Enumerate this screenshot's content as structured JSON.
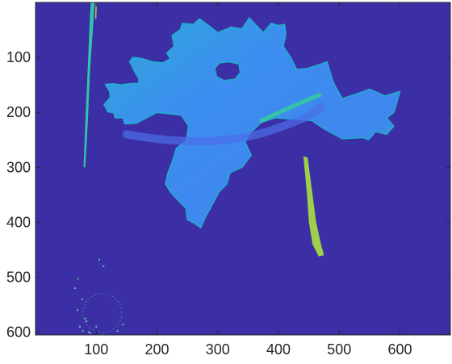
{
  "chart_data": {
    "type": "heatmap",
    "title": "",
    "xlabel": "",
    "ylabel": "",
    "xlim": [
      0,
      683
    ],
    "ylim": [
      0,
      605
    ],
    "y_reversed": true,
    "grid": false,
    "xticks": [
      100,
      200,
      300,
      400,
      500,
      600
    ],
    "xtick_labels": [
      "100",
      "200",
      "300",
      "400",
      "500",
      "600"
    ],
    "yticks": [
      100,
      200,
      300,
      400,
      500,
      600
    ],
    "ytick_labels": [
      "100",
      "200",
      "300",
      "400",
      "500",
      "600"
    ],
    "colormap": "parula",
    "colors": {
      "background": "#3c2fa6",
      "leaf_main": "#3c8ef0",
      "leaf_edge": "#1fb0c8",
      "leaf_inner": "#4a6ee8",
      "vein": "#33c3a8",
      "stem": "#9ed04a",
      "stem_dark": "#4fc3a0",
      "speckle": "#55c6a0"
    },
    "leaf_outline": [
      [
        285,
        42
      ],
      [
        300,
        55
      ],
      [
        322,
        45
      ],
      [
        340,
        48
      ],
      [
        352,
        28
      ],
      [
        362,
        40
      ],
      [
        375,
        55
      ],
      [
        388,
        38
      ],
      [
        400,
        42
      ],
      [
        410,
        40
      ],
      [
        412,
        58
      ],
      [
        408,
        80
      ],
      [
        420,
        100
      ],
      [
        430,
        122
      ],
      [
        448,
        120
      ],
      [
        470,
        112
      ],
      [
        480,
        108
      ],
      [
        490,
        145
      ],
      [
        505,
        175
      ],
      [
        532,
        165
      ],
      [
        550,
        158
      ],
      [
        575,
        170
      ],
      [
        600,
        162
      ],
      [
        590,
        200
      ],
      [
        578,
        210
      ],
      [
        590,
        225
      ],
      [
        578,
        240
      ],
      [
        560,
        235
      ],
      [
        548,
        250
      ],
      [
        540,
        246
      ],
      [
        505,
        248
      ],
      [
        475,
        230
      ],
      [
        455,
        215
      ],
      [
        420,
        212
      ],
      [
        395,
        210
      ],
      [
        372,
        218
      ],
      [
        355,
        236
      ],
      [
        345,
        254
      ],
      [
        355,
        278
      ],
      [
        340,
        300
      ],
      [
        320,
        310
      ],
      [
        315,
        330
      ],
      [
        302,
        345
      ],
      [
        290,
        370
      ],
      [
        280,
        390
      ],
      [
        272,
        410
      ],
      [
        262,
        402
      ],
      [
        250,
        395
      ],
      [
        248,
        375
      ],
      [
        235,
        360
      ],
      [
        222,
        345
      ],
      [
        214,
        330
      ],
      [
        218,
        310
      ],
      [
        225,
        290
      ],
      [
        232,
        265
      ],
      [
        248,
        252
      ],
      [
        252,
        225
      ],
      [
        240,
        205
      ],
      [
        200,
        200
      ],
      [
        166,
        220
      ],
      [
        147,
        221
      ],
      [
        144,
        210
      ],
      [
        131,
        210
      ],
      [
        129,
        201
      ],
      [
        119,
        199
      ],
      [
        113,
        186
      ],
      [
        123,
        173
      ],
      [
        122,
        162
      ],
      [
        115,
        149
      ],
      [
        128,
        148
      ],
      [
        140,
        150
      ],
      [
        155,
        148
      ],
      [
        170,
        147
      ],
      [
        170,
        138
      ],
      [
        164,
        128
      ],
      [
        160,
        118
      ],
      [
        155,
        108
      ],
      [
        160,
        100
      ],
      [
        175,
        102
      ],
      [
        192,
        108
      ],
      [
        210,
        110
      ],
      [
        222,
        102
      ],
      [
        216,
        92
      ],
      [
        228,
        80
      ],
      [
        225,
        60
      ],
      [
        238,
        50
      ],
      [
        242,
        38
      ],
      [
        260,
        40
      ],
      [
        270,
        30
      ],
      [
        285,
        42
      ]
    ],
    "leaf_hole": [
      [
        318,
        108
      ],
      [
        335,
        112
      ],
      [
        337,
        128
      ],
      [
        328,
        140
      ],
      [
        310,
        142
      ],
      [
        298,
        135
      ],
      [
        295,
        120
      ],
      [
        303,
        110
      ],
      [
        318,
        108
      ]
    ],
    "stem": [
      [
        441,
        280
      ],
      [
        448,
        282
      ],
      [
        456,
        350
      ],
      [
        462,
        400
      ],
      [
        470,
        440
      ],
      [
        475,
        460
      ],
      [
        466,
        462
      ],
      [
        456,
        440
      ],
      [
        450,
        400
      ],
      [
        447,
        350
      ],
      [
        441,
        280
      ]
    ],
    "left_streak": [
      [
        91,
        0
      ],
      [
        97,
        0
      ],
      [
        95,
        40
      ],
      [
        90,
        120
      ],
      [
        86,
        220
      ],
      [
        82,
        300
      ],
      [
        79,
        300
      ],
      [
        82,
        220
      ],
      [
        86,
        120
      ],
      [
        89,
        40
      ],
      [
        91,
        0
      ]
    ],
    "left_streak2": [
      [
        99,
        0
      ],
      [
        101,
        0
      ],
      [
        100,
        30
      ],
      [
        98,
        30
      ],
      [
        99,
        0
      ]
    ],
    "speckles": [
      [
        73,
        590
      ],
      [
        78,
        598
      ],
      [
        82,
        575
      ],
      [
        90,
        601
      ],
      [
        69,
        560
      ],
      [
        77,
        540
      ],
      [
        84,
        580
      ],
      [
        110,
        605
      ],
      [
        135,
        598
      ],
      [
        144,
        586
      ],
      [
        70,
        503
      ],
      [
        65,
        520
      ],
      [
        88,
        600
      ],
      [
        100,
        590
      ],
      [
        105,
        468
      ],
      [
        112,
        480
      ]
    ]
  }
}
